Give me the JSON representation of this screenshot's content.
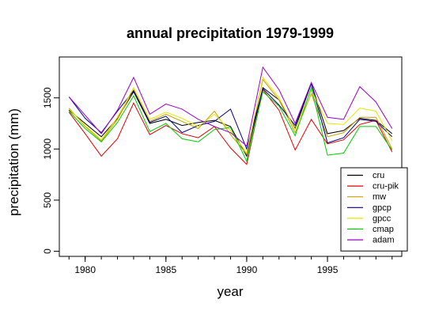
{
  "chart_data": {
    "type": "line",
    "title": "annual precipitation 1979-1999",
    "xlabel": "year",
    "ylabel": "precipitation (mm)",
    "xlim": [
      1978.4,
      1999.6
    ],
    "ylim": [
      -50,
      1900
    ],
    "xticks": [
      1980,
      1985,
      1990,
      1995
    ],
    "yticks": [
      0,
      500,
      1000,
      1500
    ],
    "grid": false,
    "legend_position": "bottom-right",
    "x": [
      1979,
      1980,
      1981,
      1982,
      1983,
      1984,
      1985,
      1986,
      1987,
      1988,
      1989,
      1990,
      1991,
      1992,
      1993,
      1994,
      1995,
      1996,
      1997,
      1998,
      1999
    ],
    "series": [
      {
        "name": "cru",
        "color": "#000000",
        "values": [
          1380,
          1250,
          1120,
          1300,
          1560,
          1250,
          1290,
          1230,
          1260,
          1280,
          1220,
          930,
          1600,
          1480,
          1200,
          1640,
          1150,
          1180,
          1300,
          1280,
          1150
        ]
      },
      {
        "name": "cru-pik",
        "color": "#e00000",
        "values": [
          1360,
          1150,
          930,
          1100,
          1450,
          1140,
          1230,
          1150,
          1110,
          1220,
          1010,
          850,
          1580,
          1380,
          990,
          1290,
          1050,
          1090,
          1240,
          1280,
          970
        ]
      },
      {
        "name": "mw",
        "color": "#c8a000",
        "values": [
          1400,
          1220,
          1080,
          1290,
          1580,
          1270,
          1340,
          1270,
          1200,
          1370,
          1140,
          950,
          1680,
          1480,
          1160,
          1540,
          1120,
          1160,
          1310,
          1310,
          1000
        ]
      },
      {
        "name": "gpcp",
        "color": "#00008b",
        "values": [
          1510,
          1300,
          1160,
          1370,
          1570,
          1260,
          1320,
          1160,
          1230,
          1270,
          1390,
          1000,
          1590,
          1430,
          1230,
          1640,
          1060,
          1110,
          1290,
          1270,
          1120
        ]
      },
      {
        "name": "gpcc",
        "color": "#e6e600",
        "values": [
          1390,
          1230,
          1090,
          1310,
          1600,
          1290,
          1360,
          1300,
          1220,
          1340,
          1180,
          960,
          1700,
          1500,
          1190,
          1580,
          1250,
          1240,
          1400,
          1370,
          1080
        ]
      },
      {
        "name": "cmap",
        "color": "#00cc00",
        "values": [
          1370,
          1200,
          1070,
          1260,
          1520,
          1170,
          1250,
          1100,
          1070,
          1190,
          1210,
          880,
          1560,
          1420,
          1130,
          1600,
          940,
          960,
          1220,
          1220,
          990
        ]
      },
      {
        "name": "adam",
        "color": "#9900cc",
        "values": [
          1510,
          1330,
          1150,
          1380,
          1700,
          1340,
          1440,
          1390,
          1290,
          1220,
          1160,
          1030,
          1800,
          1580,
          1250,
          1650,
          1310,
          1290,
          1610,
          1460,
          1200
        ]
      }
    ]
  }
}
